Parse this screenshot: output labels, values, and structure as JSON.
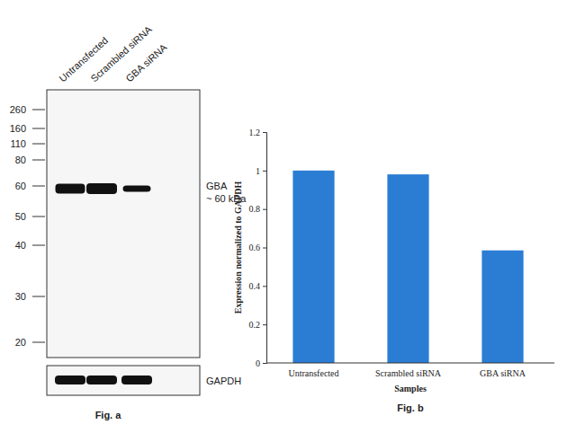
{
  "chart_data": {
    "type": "bar",
    "categories": [
      "Untransfected",
      "Scrambled siRNA",
      "GBA siRNA"
    ],
    "values": [
      1,
      0.98,
      0.585
    ],
    "color": "#2b7dd4",
    "ylim": [
      0,
      1.2
    ],
    "yticks": [
      0,
      0.2,
      0.4,
      0.6,
      0.8,
      1,
      1.2
    ],
    "x_label": "Samples",
    "y_label": "Expression normalized to GAPDH",
    "caption": "Fig. b",
    "grid": false
  },
  "blot": {
    "lanes": [
      "Untransfected",
      "Scrambled siRNA",
      "GBA siRNA"
    ],
    "markers": [
      260,
      160,
      110,
      80,
      60,
      50,
      40,
      30,
      20
    ],
    "target": "GBA",
    "target_size": "~ 60 kDa",
    "loading_control": "GAPDH",
    "caption": "Fig. a"
  }
}
